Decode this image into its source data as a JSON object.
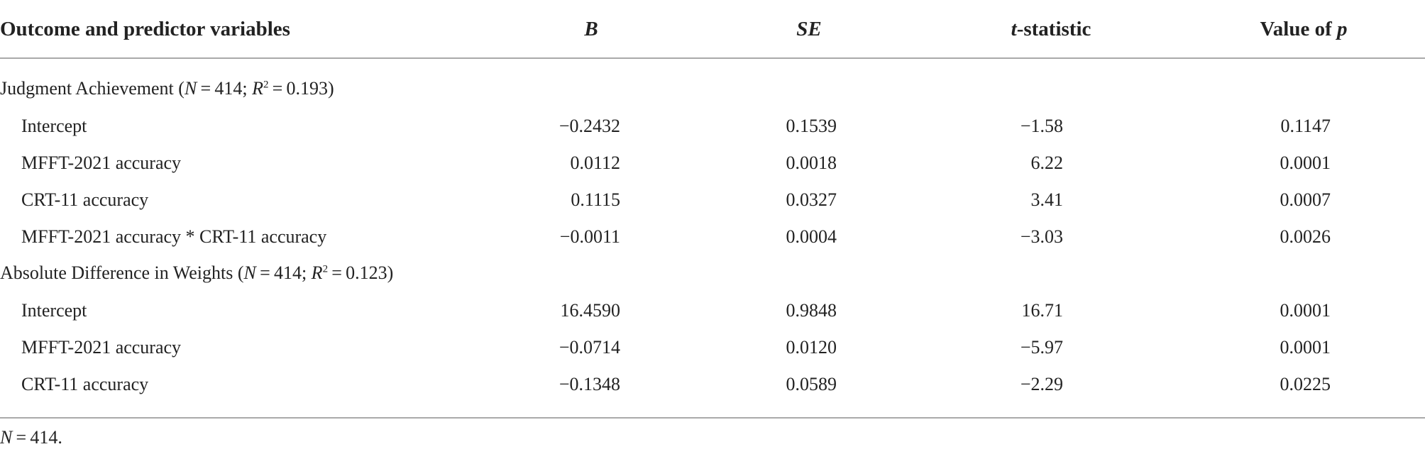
{
  "table": {
    "header": [
      [
        "Outcome and predictor variables"
      ],
      [
        "B"
      ],
      [
        "SE"
      ],
      [
        "t",
        "-statistic"
      ],
      [
        "Value of ",
        "p"
      ]
    ],
    "sections": [
      {
        "title": [
          "Judgment Achievement (",
          "N",
          " = 414; ",
          "R",
          "2",
          " = 0.193)"
        ],
        "rows": [
          [
            "Intercept",
            "−0.2432",
            "0.1539",
            "−1.58",
            "0.1147"
          ],
          [
            "MFFT-2021 accuracy",
            "0.0112",
            "0.0018",
            "6.22",
            "0.0001"
          ],
          [
            "CRT-11 accuracy",
            "0.1115",
            "0.0327",
            "3.41",
            "0.0007"
          ],
          [
            "MFFT-2021 accuracy * CRT-11 accuracy",
            "−0.0011",
            "0.0004",
            "−3.03",
            "0.0026"
          ]
        ]
      },
      {
        "title": [
          "Absolute Difference in Weights (",
          "N",
          " = 414; ",
          "R",
          "2",
          " = 0.123)"
        ],
        "rows": [
          [
            "Intercept",
            "16.4590",
            "0.9848",
            "16.71",
            "0.0001"
          ],
          [
            "MFFT-2021 accuracy",
            "−0.0714",
            "0.0120",
            "−5.97",
            "0.0001"
          ],
          [
            "CRT-11 accuracy",
            "−0.1348",
            "0.0589",
            "−2.29",
            "0.0225"
          ]
        ]
      }
    ],
    "footnote": [
      "N",
      " = 414."
    ]
  }
}
